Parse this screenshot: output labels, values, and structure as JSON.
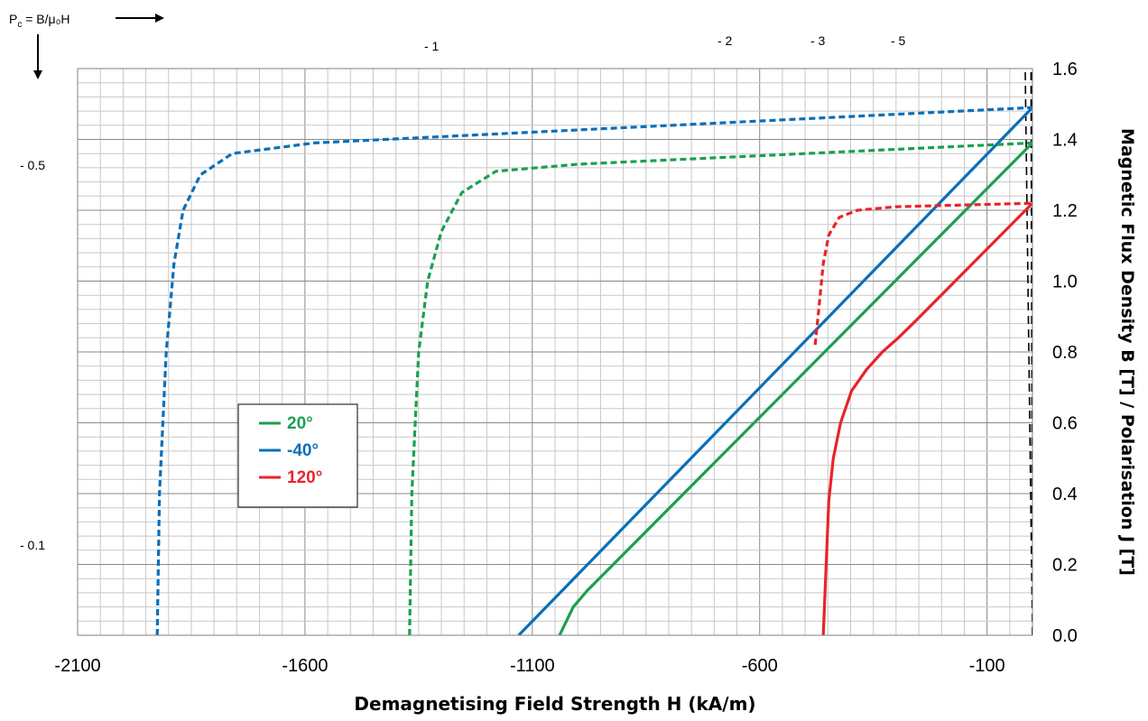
{
  "chart_data": {
    "type": "line",
    "xlabel": "Demagnetising Field Strength H (kA/m)",
    "ylabel": "Magnetic Flux Density B [T] / Polarisation J [T]",
    "xlim": [
      -2100,
      0
    ],
    "ylim": [
      0,
      1.6
    ],
    "x_ticks": [
      -2100,
      -1600,
      -1100,
      -600,
      -100
    ],
    "x_tick_labels": [
      "-2100",
      "-1600",
      "-1100",
      "-600",
      "-100"
    ],
    "y_ticks": [
      0,
      0.2,
      0.4,
      0.6,
      0.8,
      1.0,
      1.2,
      1.4,
      1.6
    ],
    "y_tick_labels": [
      "0.0",
      "0.2",
      "0.4",
      "0.6",
      "0.8",
      "1.0",
      "1.2",
      "1.4",
      "1.6"
    ],
    "y_axis_side": "right",
    "grid": true,
    "legend_position": "left-middle",
    "pc_annotation": {
      "text": "P",
      "subscript": "c",
      "rest": " = B/μ₀H"
    },
    "permeance_lines": [
      {
        "label": "- 0.5",
        "slope": -0.5,
        "top_x": -2100
      },
      {
        "label": "- 0.1",
        "slope": -0.1,
        "top_x": -2100
      },
      {
        "label": "- 1",
        "slope": -1,
        "top_x": -1360
      },
      {
        "label": "- 2",
        "slope": -2,
        "top_x": -636
      },
      {
        "label": "- 3",
        "slope": -3,
        "top_x": -425
      },
      {
        "label": "- 5",
        "slope": -5,
        "top_x": -255
      }
    ],
    "series": [
      {
        "name": "20°",
        "color": "#1aa050",
        "kind": "B",
        "points": [
          [
            -1040,
            0
          ],
          [
            -1010,
            0.08
          ],
          [
            -980,
            0.125
          ],
          [
            0,
            1.39
          ]
        ]
      },
      {
        "name": "-40°",
        "color": "#0b6fb9",
        "kind": "B",
        "points": [
          [
            -1130,
            0
          ],
          [
            0,
            1.49
          ]
        ]
      },
      {
        "name": "120°",
        "color": "#e8242a",
        "kind": "B",
        "points": [
          [
            -460,
            0
          ],
          [
            -448,
            0.38
          ],
          [
            -438,
            0.5
          ],
          [
            -422,
            0.6
          ],
          [
            -398,
            0.69
          ],
          [
            -365,
            0.75
          ],
          [
            -330,
            0.8
          ],
          [
            -295,
            0.84
          ],
          [
            -255,
            0.89
          ],
          [
            0,
            1.22
          ]
        ]
      },
      {
        "name": "20° J",
        "color": "#1aa050",
        "kind": "J",
        "points": [
          [
            -1370,
            0
          ],
          [
            -1365,
            0.4
          ],
          [
            -1350,
            0.8
          ],
          [
            -1330,
            1.0
          ],
          [
            -1300,
            1.14
          ],
          [
            -1255,
            1.25
          ],
          [
            -1180,
            1.31
          ],
          [
            -1000,
            1.33
          ],
          [
            0,
            1.39
          ]
        ]
      },
      {
        "name": "-40° J",
        "color": "#0b6fb9",
        "kind": "J",
        "points": [
          [
            -1925,
            0
          ],
          [
            -1920,
            0.4
          ],
          [
            -1905,
            0.8
          ],
          [
            -1888,
            1.05
          ],
          [
            -1868,
            1.2
          ],
          [
            -1830,
            1.3
          ],
          [
            -1760,
            1.36
          ],
          [
            -1580,
            1.39
          ],
          [
            0,
            1.49
          ]
        ]
      },
      {
        "name": "120° J",
        "color": "#e8242a",
        "kind": "J",
        "points": [
          [
            -478,
            0.82
          ],
          [
            -470,
            0.92
          ],
          [
            -460,
            1.05
          ],
          [
            -448,
            1.13
          ],
          [
            -425,
            1.18
          ],
          [
            -385,
            1.2
          ],
          [
            -300,
            1.21
          ],
          [
            0,
            1.22
          ]
        ]
      }
    ]
  },
  "legend": {
    "items": [
      {
        "label": "20°",
        "color": "#1aa050"
      },
      {
        "label": "-40°",
        "color": "#0b6fb9"
      },
      {
        "label": "120°",
        "color": "#e8242a"
      }
    ]
  }
}
